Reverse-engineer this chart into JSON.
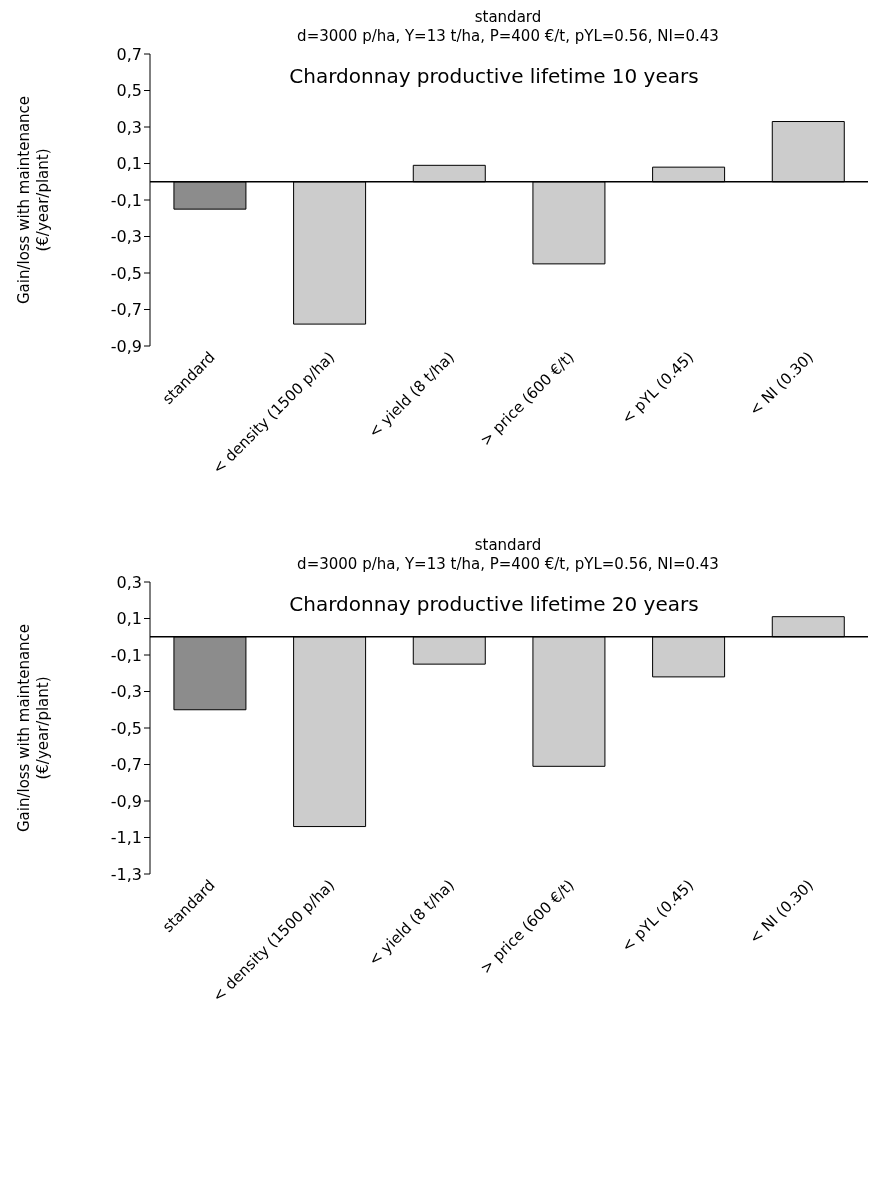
{
  "chart_data": [
    {
      "type": "bar",
      "title": "standard",
      "subtitle": "d=3000 p/ha, Y=13 t/ha, P=400 €/t, pYL=0.56, NI=0.43",
      "ylabel": "Gain/loss with maintenance (€/year/plant)",
      "annotations": [
        "Chardonnay productive lifetime 10 years"
      ],
      "categories": [
        "standard",
        "< density (1500 p/ha)",
        "< yield (8 t/ha)",
        "> price (600 €/t)",
        "< pYL (0.45)",
        "< NI (0.30)"
      ],
      "values": [
        -0.15,
        -0.78,
        0.09,
        -0.45,
        0.08,
        0.33
      ],
      "colors": [
        "#8c8c8c",
        "#cccccc",
        "#cccccc",
        "#cccccc",
        "#cccccc",
        "#cccccc"
      ],
      "ylim": [
        -0.9,
        0.7
      ],
      "yticks": [
        {
          "value": -0.9,
          "label": "-0,9"
        },
        {
          "value": -0.7,
          "label": "-0,7"
        },
        {
          "value": -0.5,
          "label": "-0,5"
        },
        {
          "value": -0.3,
          "label": "-0,3"
        },
        {
          "value": -0.1,
          "label": "-0,1"
        },
        {
          "value": 0.1,
          "label": "0,1"
        },
        {
          "value": 0.3,
          "label": "0,3"
        },
        {
          "value": 0.5,
          "label": "0,5"
        },
        {
          "value": 0.7,
          "label": "0,7"
        }
      ],
      "grid": false,
      "legend": false
    },
    {
      "type": "bar",
      "title": "standard",
      "subtitle": "d=3000 p/ha, Y=13 t/ha, P=400 €/t, pYL=0.56, NI=0.43",
      "ylabel": "Gain/loss with maintenance (€/year/plant)",
      "annotations": [
        "Chardonnay productive lifetime 20 years"
      ],
      "categories": [
        "standard",
        "< density (1500 p/ha)",
        "< yield (8 t/ha)",
        "> price (600 €/t)",
        "< pYL (0.45)",
        "< NI (0.30)"
      ],
      "values": [
        -0.4,
        -1.04,
        -0.15,
        -0.71,
        -0.22,
        0.11
      ],
      "colors": [
        "#8c8c8c",
        "#cccccc",
        "#cccccc",
        "#cccccc",
        "#cccccc",
        "#cccccc"
      ],
      "ylim": [
        -1.3,
        0.3
      ],
      "yticks": [
        {
          "value": -1.3,
          "label": "-1,3"
        },
        {
          "value": -1.1,
          "label": "-1,1"
        },
        {
          "value": -0.9,
          "label": "-0,9"
        },
        {
          "value": -0.7,
          "label": "-0,7"
        },
        {
          "value": -0.5,
          "label": "-0,5"
        },
        {
          "value": -0.3,
          "label": "-0,3"
        },
        {
          "value": -0.1,
          "label": "-0,1"
        },
        {
          "value": 0.1,
          "label": "0,1"
        },
        {
          "value": 0.3,
          "label": "0,3"
        }
      ],
      "grid": false,
      "legend": false
    }
  ]
}
